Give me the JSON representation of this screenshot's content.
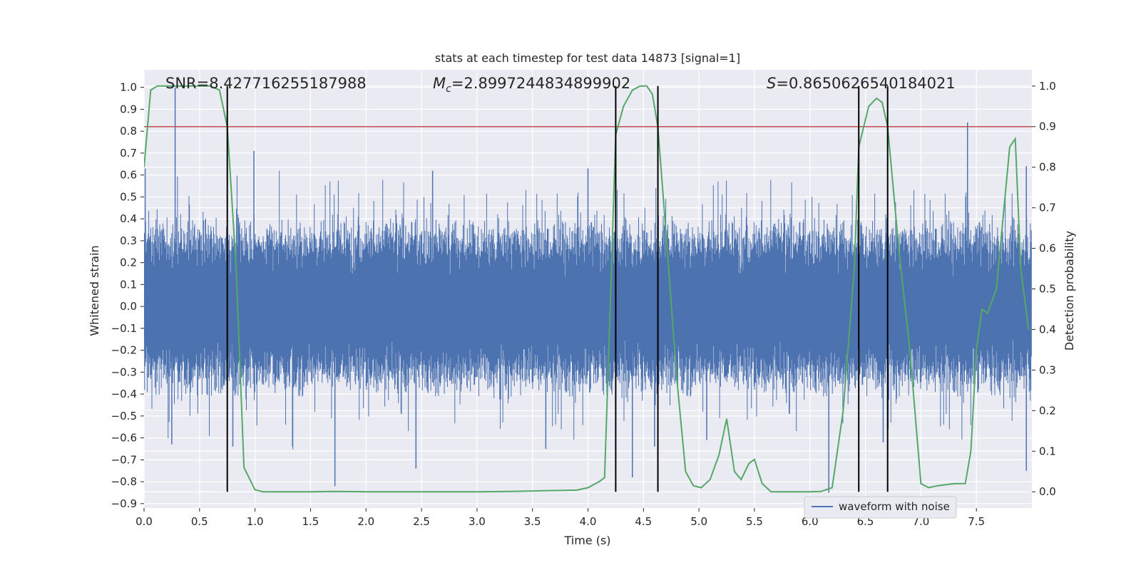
{
  "chart_data": {
    "type": "line",
    "title": "stats at each timestep for test data 14873 [signal=1]",
    "xlabel": "Time (s)",
    "ylabel_left": "Whitened strain",
    "ylabel_right": "Detection probability",
    "xlim": [
      0.0,
      8.0
    ],
    "ylim_left": [
      -0.92,
      1.08
    ],
    "ylim_right": [
      -0.04,
      1.04
    ],
    "x_ticks": [
      "0.0",
      "0.5",
      "1.0",
      "1.5",
      "2.0",
      "2.5",
      "3.0",
      "3.5",
      "4.0",
      "4.5",
      "5.0",
      "5.5",
      "6.0",
      "6.5",
      "7.0",
      "7.5"
    ],
    "y_ticks_left": [
      "1.0",
      "0.9",
      "0.8",
      "0.7",
      "0.6",
      "0.5",
      "0.4",
      "0.3",
      "0.2",
      "0.1",
      "0.0",
      "−0.1",
      "−0.2",
      "−0.3",
      "−0.4",
      "−0.5",
      "−0.6",
      "−0.7",
      "−0.8",
      "−0.9"
    ],
    "y_ticks_right": [
      "1.0",
      "0.9",
      "0.8",
      "0.7",
      "0.6",
      "0.5",
      "0.4",
      "0.3",
      "0.2",
      "0.1",
      "0.0"
    ],
    "annotations": {
      "snr": "SNR=8.427716255187988",
      "mc_symbol": "M",
      "mc_sub": "c",
      "mc_value": "=2.8997244834899902",
      "s_symbol": "S",
      "s_value": "=0.8650626540184021"
    },
    "threshold": 0.9,
    "vertical_lines": [
      0.75,
      4.25,
      4.63,
      6.44,
      6.7
    ],
    "series": [
      {
        "name": "waveform with noise",
        "axis": "left",
        "color": "#4c72b0",
        "description": "dense noise time series, approx +/-0.3 envelope with spikes",
        "spikes": [
          [
            0.28,
            1.0
          ],
          [
            0.01,
            0.63
          ],
          [
            0.25,
            -0.63
          ],
          [
            0.99,
            0.71
          ],
          [
            1.72,
            -0.82
          ],
          [
            2.45,
            -0.74
          ],
          [
            2.6,
            0.62
          ],
          [
            3.62,
            -0.65
          ],
          [
            4.0,
            0.63
          ],
          [
            4.4,
            -0.78
          ],
          [
            4.6,
            -0.64
          ],
          [
            5.07,
            -0.61
          ],
          [
            6.17,
            -0.85
          ],
          [
            6.66,
            -0.62
          ],
          [
            7.42,
            0.84
          ],
          [
            7.95,
            0.64
          ],
          [
            7.95,
            -0.75
          ],
          [
            0.8,
            -0.64
          ]
        ]
      },
      {
        "name": "Detection probability",
        "axis": "right",
        "color": "#55a868",
        "x": [
          0.0,
          0.06,
          0.12,
          0.2,
          0.3,
          0.4,
          0.5,
          0.6,
          0.68,
          0.75,
          0.83,
          0.9,
          1.0,
          1.07,
          1.2,
          1.5,
          1.7,
          2.0,
          2.5,
          3.0,
          3.3,
          3.5,
          3.7,
          3.9,
          4.0,
          4.1,
          4.15,
          4.2,
          4.25,
          4.32,
          4.4,
          4.47,
          4.53,
          4.58,
          4.63,
          4.7,
          4.8,
          4.88,
          4.95,
          5.02,
          5.1,
          5.18,
          5.25,
          5.32,
          5.38,
          5.45,
          5.5,
          5.57,
          5.65,
          5.8,
          6.0,
          6.1,
          6.2,
          6.3,
          6.4,
          6.44,
          6.53,
          6.6,
          6.65,
          6.7,
          6.8,
          6.9,
          7.0,
          7.07,
          7.15,
          7.3,
          7.4,
          7.45,
          7.5,
          7.55,
          7.6,
          7.68,
          7.8,
          7.85,
          7.9,
          7.97
        ],
        "values": [
          0.8,
          0.99,
          1.0,
          1.0,
          1.0,
          1.0,
          1.0,
          1.0,
          0.99,
          0.9,
          0.55,
          0.06,
          0.005,
          0.0,
          0.0,
          0.0,
          0.001,
          0.0,
          0.0,
          0.0,
          0.001,
          0.002,
          0.003,
          0.004,
          0.01,
          0.025,
          0.035,
          0.45,
          0.88,
          0.95,
          0.99,
          1.0,
          1.0,
          0.98,
          0.9,
          0.65,
          0.28,
          0.05,
          0.015,
          0.01,
          0.03,
          0.09,
          0.18,
          0.05,
          0.03,
          0.07,
          0.08,
          0.02,
          0.0,
          0.0,
          0.0,
          0.001,
          0.01,
          0.2,
          0.55,
          0.85,
          0.95,
          0.97,
          0.96,
          0.9,
          0.6,
          0.35,
          0.02,
          0.01,
          0.015,
          0.02,
          0.02,
          0.1,
          0.35,
          0.45,
          0.44,
          0.5,
          0.85,
          0.87,
          0.55,
          0.4
        ]
      }
    ],
    "legend": {
      "label": "waveform with noise",
      "placement": "bottom-right"
    }
  },
  "colors": {
    "plot_bg": "#eaeaf2",
    "grid": "#ffffff",
    "waveform": "#4c72b0",
    "probability": "#55a868",
    "threshold": "#c44e52",
    "vlines": "#000000"
  }
}
